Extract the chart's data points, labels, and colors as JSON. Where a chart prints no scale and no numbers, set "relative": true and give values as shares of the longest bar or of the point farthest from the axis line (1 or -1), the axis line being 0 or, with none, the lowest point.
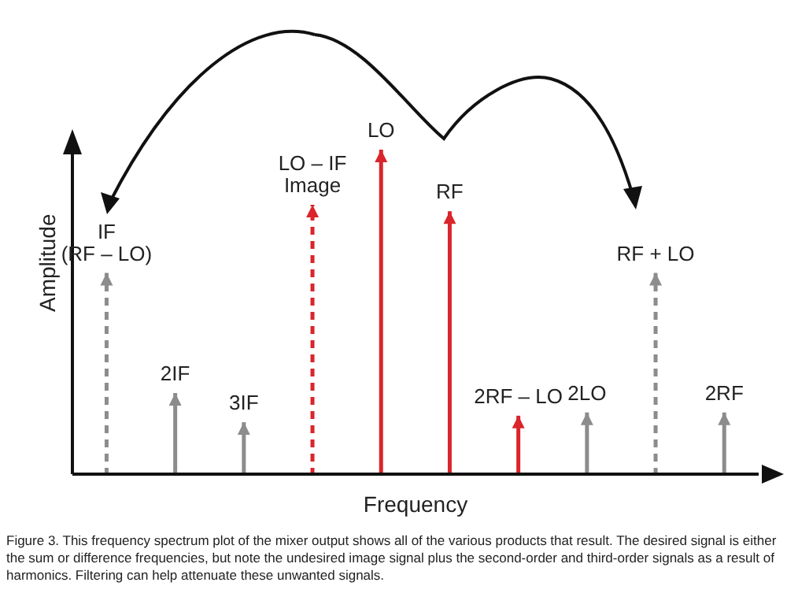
{
  "chart_data": {
    "type": "bar",
    "relative": true,
    "xlabel": "Frequency",
    "ylabel": "Amplitude",
    "tick_labels": false,
    "legend": false,
    "categories": [
      "IF\n(RF – LO)",
      "2IF",
      "3IF",
      "LO – IF\nImage",
      "LO",
      "RF",
      "2RF – LO",
      "2LO",
      "RF + LO",
      "2RF"
    ],
    "series": [
      {
        "color": "#d9252b",
        "line_style": "solid",
        "values": [
          null,
          null,
          null,
          null,
          1.0,
          0.81,
          0.18,
          null,
          null,
          null
        ]
      },
      {
        "color": "#d9252b",
        "line_style": "dashed",
        "values": [
          null,
          null,
          null,
          0.83,
          null,
          null,
          null,
          null,
          null,
          null
        ]
      },
      {
        "color": "#8c8c8c",
        "line_style": "dashed",
        "values": [
          0.62,
          null,
          null,
          null,
          null,
          null,
          null,
          null,
          0.62,
          null
        ]
      },
      {
        "color": "#8c8c8c",
        "line_style": "solid",
        "values": [
          null,
          0.25,
          0.16,
          null,
          null,
          null,
          null,
          0.19,
          null,
          0.19
        ]
      }
    ],
    "annotations": [
      "Figure 3. This frequency spectrum plot of the mixer output shows all of the various products that result. The desired signal is either the sum or difference frequencies, but note the undesired image signal plus the second-order and third-order signals as a result of harmonics. Filtering can help attenuate these unwanted signals."
    ]
  }
}
